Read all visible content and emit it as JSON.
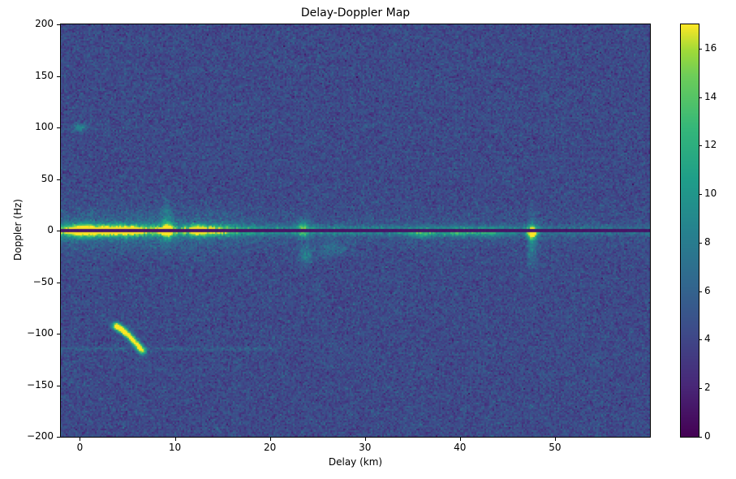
{
  "chart_data": {
    "type": "heatmap",
    "title": "Delay-Doppler Map",
    "xlabel": "Delay (km)",
    "ylabel": "Doppler (Hz)",
    "xlim": [
      -2,
      60
    ],
    "ylim": [
      -200,
      200
    ],
    "xticks": [
      0,
      10,
      20,
      30,
      40,
      50
    ],
    "yticks": [
      -200,
      -150,
      -100,
      -50,
      0,
      50,
      100,
      150,
      200
    ],
    "colormap": "viridis",
    "vmin": 0,
    "vmax": 17,
    "colorbar_ticks": [
      0,
      2,
      4,
      6,
      8,
      10,
      12,
      14,
      16
    ],
    "noise": {
      "mean": 4.3,
      "std": 0.9
    },
    "features": {
      "zero_doppler_ridge": {
        "y": 0,
        "sy": 3.2,
        "amp_profile": [
          [
            -2,
            6.5
          ],
          [
            0,
            8.5
          ],
          [
            8,
            8
          ],
          [
            13,
            7.5
          ],
          [
            16,
            6.5
          ],
          [
            22,
            5
          ],
          [
            30,
            4.5
          ],
          [
            45,
            4
          ],
          [
            50,
            3.2
          ],
          [
            60,
            2.8
          ]
        ]
      },
      "ridge_wings": {
        "y": 0,
        "sy": 13,
        "amp_profile": [
          [
            -2,
            2.6
          ],
          [
            10,
            2.6
          ],
          [
            16,
            2.0
          ],
          [
            20,
            0.8
          ],
          [
            60,
            0.4
          ]
        ]
      },
      "zero_doppler_dark_line": {
        "y": 0,
        "half_width": 0.85,
        "value": 0.9
      },
      "blobs": [
        {
          "x": 0,
          "y": 0,
          "amp": 9,
          "sx": 1.2,
          "sy": 4
        },
        {
          "x": 2.2,
          "y": 0,
          "amp": 5,
          "sx": 2.0,
          "sy": 4.5
        },
        {
          "x": 5,
          "y": 0,
          "amp": 6,
          "sx": 1.8,
          "sy": 4
        },
        {
          "x": 9.2,
          "y": 0,
          "amp": 9,
          "sx": 0.5,
          "sy": 5
        },
        {
          "x": 9.2,
          "y": 8,
          "amp": 3,
          "sx": 0.4,
          "sy": 14
        },
        {
          "x": 12.5,
          "y": 0,
          "amp": 8,
          "sx": 0.8,
          "sy": 4
        },
        {
          "x": 14.5,
          "y": 0,
          "amp": 5,
          "sx": 1.0,
          "sy": 3.5
        },
        {
          "x": 23.5,
          "y": 2,
          "amp": 6,
          "sx": 0.5,
          "sy": 6
        },
        {
          "x": 23.8,
          "y": -24,
          "amp": 4,
          "sx": 0.5,
          "sy": 6
        },
        {
          "x": 26.5,
          "y": -18,
          "amp": 2.5,
          "sx": 0.9,
          "sy": 5
        },
        {
          "x": 36,
          "y": -3,
          "amp": 4.5,
          "sx": 1.2,
          "sy": 3
        },
        {
          "x": 40,
          "y": -2,
          "amp": 4.5,
          "sx": 1.5,
          "sy": 3
        },
        {
          "x": 43.5,
          "y": -2,
          "amp": 4,
          "sx": 1.0,
          "sy": 3
        },
        {
          "x": 47.6,
          "y": -2,
          "amp": 13,
          "sx": 0.35,
          "sy": 4
        },
        {
          "x": 47.6,
          "y": -10,
          "amp": 4,
          "sx": 0.35,
          "sy": 16
        },
        {
          "x": 0,
          "y": 100,
          "amp": 5,
          "sx": 0.5,
          "sy": 2.5
        }
      ],
      "diagonal_arc": {
        "x0": 3.6,
        "x1": 6.7,
        "y0": -92,
        "y1": -118,
        "curve": 1.4,
        "amp": 4,
        "sx": 0.25,
        "sy": 2.5,
        "tip_amp": 5.5
      },
      "faint_horizontal_line": {
        "y": -115,
        "x0": -2,
        "x1": 21,
        "amp": 1.4,
        "sy": 1.4
      }
    }
  }
}
